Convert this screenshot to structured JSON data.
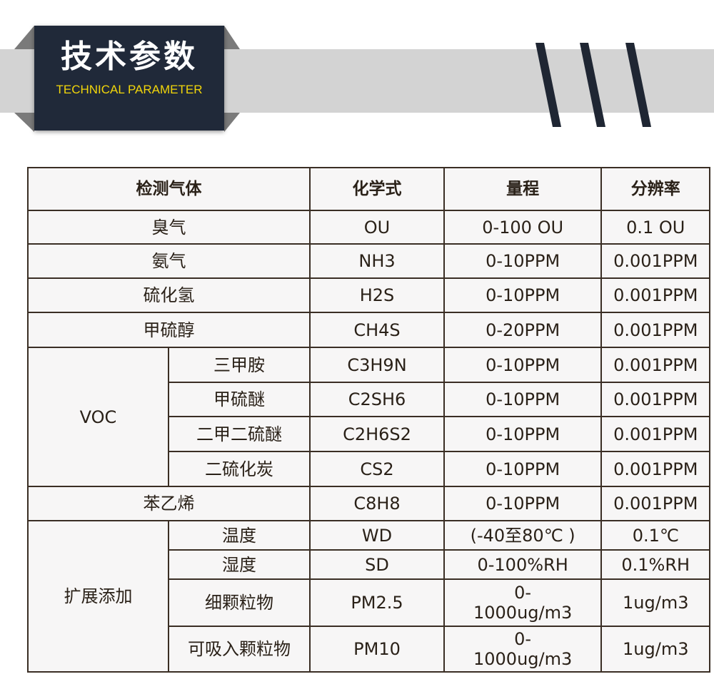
{
  "header": {
    "title": "技术参数",
    "subtitle": "TECHNICAL PARAMETER"
  },
  "table": {
    "columns": [
      "检测气体",
      "化学式",
      "量程",
      "分辨率"
    ],
    "rows": [
      {
        "gas": "臭气",
        "formula": "OU",
        "range": "0-100 OU",
        "resolution": "0.1 OU"
      },
      {
        "gas": "氨气",
        "formula": "NH3",
        "range": "0-10PPM",
        "resolution": "0.001PPM"
      },
      {
        "gas": "硫化氢",
        "formula": "H2S",
        "range": "0-10PPM",
        "resolution": "0.001PPM"
      },
      {
        "gas": "甲硫醇",
        "formula": "CH4S",
        "range": "0-20PPM",
        "resolution": "0.001PPM"
      }
    ],
    "voc": {
      "group": "VOC",
      "rows": [
        {
          "gas": "三甲胺",
          "formula": "C3H9N",
          "range": "0-10PPM",
          "resolution": "0.001PPM"
        },
        {
          "gas": "甲硫醚",
          "formula": "C2SH6",
          "range": "0-10PPM",
          "resolution": "0.001PPM"
        },
        {
          "gas": "二甲二硫醚",
          "formula": "C2H6S2",
          "range": "0-10PPM",
          "resolution": "0.001PPM"
        },
        {
          "gas": "二硫化炭",
          "formula": "CS2",
          "range": "0-10PPM",
          "resolution": "0.001PPM"
        }
      ]
    },
    "styrene": {
      "gas": "苯乙烯",
      "formula": "C8H8",
      "range": "0-10PPM",
      "resolution": "0.001PPM"
    },
    "ext": {
      "group": "扩展添加",
      "rows": [
        {
          "gas": "温度",
          "formula": "WD",
          "range": "(-40至80℃ )",
          "resolution": "0.1℃"
        },
        {
          "gas": "湿度",
          "formula": "SD",
          "range": "0-100%RH",
          "resolution": "0.1%RH"
        },
        {
          "gas": "细颗粒物",
          "formula": "PM2.5",
          "range": "0-1000ug/m3",
          "resolution": "1ug/m3"
        },
        {
          "gas": "可吸入颗粒物",
          "formula": "PM10",
          "range": "0-1000ug/m3",
          "resolution": "1ug/m3"
        }
      ]
    }
  }
}
